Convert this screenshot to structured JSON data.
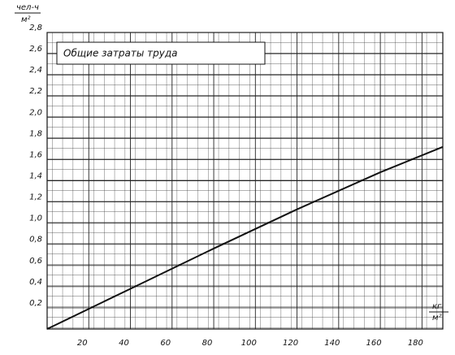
{
  "chart_data": {
    "type": "line",
    "title": "Общие затраты труда",
    "y_label": {
      "top": "чел-ч",
      "bottom": "м²"
    },
    "x_label": {
      "top": "кг",
      "bottom": "м²"
    },
    "x": [
      0,
      40,
      80,
      120,
      160,
      190
    ],
    "series": [
      {
        "name": "Общие затраты труда",
        "color": "#111111",
        "values": [
          0,
          0.38,
          0.76,
          1.13,
          1.48,
          1.72
        ]
      }
    ],
    "xlim": [
      0,
      190
    ],
    "ylim": [
      0,
      2.8
    ],
    "xticks": [
      20,
      40,
      60,
      80,
      100,
      120,
      140,
      160,
      180
    ],
    "yticks": [
      {
        "value": 0.2,
        "label": "0,2"
      },
      {
        "value": 0.4,
        "label": "0,4"
      },
      {
        "value": 0.6,
        "label": "0,6"
      },
      {
        "value": 0.8,
        "label": "0,8"
      },
      {
        "value": 1.0,
        "label": "1,0"
      },
      {
        "value": 1.2,
        "label": "1,2"
      },
      {
        "value": 1.4,
        "label": "1,4"
      },
      {
        "value": 1.6,
        "label": "1,6"
      },
      {
        "value": 1.8,
        "label": "1,8"
      },
      {
        "value": 2.0,
        "label": "2,0"
      },
      {
        "value": 2.2,
        "label": "2,2"
      },
      {
        "value": 2.4,
        "label": "2,4"
      },
      {
        "value": 2.6,
        "label": "2,6"
      },
      {
        "value": 2.8,
        "label": "2,8"
      }
    ],
    "grid": true
  }
}
